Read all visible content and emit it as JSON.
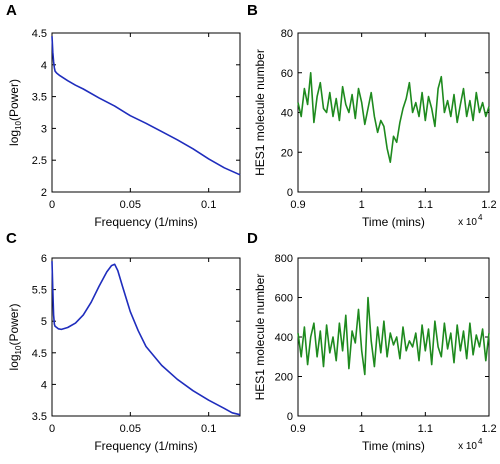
{
  "chart_data": [
    {
      "panel": "A",
      "type": "line",
      "xlabel": "Frequency (1/mins)",
      "ylabel": "log10(Power)",
      "xlim": [
        0,
        0.12
      ],
      "ylim": [
        2,
        4.5
      ],
      "xticks": [
        0,
        0.05,
        0.1
      ],
      "xtick_labels": [
        "0",
        "0.05",
        "0.1"
      ],
      "yticks": [
        2,
        2.5,
        3,
        3.5,
        4,
        4.5
      ],
      "ytick_labels": [
        "2",
        "2.5",
        "3",
        "3.5",
        "4",
        "4.5"
      ],
      "series": [
        {
          "color": "#1f2dbd",
          "x": [
            0,
            0.0005,
            0.001,
            0.0015,
            0.002,
            0.003,
            0.005,
            0.01,
            0.015,
            0.02,
            0.03,
            0.04,
            0.05,
            0.06,
            0.07,
            0.08,
            0.09,
            0.1,
            0.11,
            0.12
          ],
          "y": [
            4.45,
            4.2,
            4.05,
            3.95,
            3.9,
            3.87,
            3.83,
            3.75,
            3.68,
            3.62,
            3.48,
            3.35,
            3.2,
            3.08,
            2.95,
            2.82,
            2.68,
            2.52,
            2.38,
            2.27
          ]
        }
      ]
    },
    {
      "panel": "B",
      "type": "line",
      "xlabel": "Time (mins)",
      "ylabel": "HES1 molecule number",
      "x_multiplier": "x 10",
      "x_multiplier_exp": "4",
      "xlim": [
        0.9,
        1.2
      ],
      "ylim": [
        0,
        80
      ],
      "xticks": [
        0.9,
        1.0,
        1.1,
        1.2
      ],
      "xtick_labels": [
        "0.9",
        "1",
        "1.1",
        "1.2"
      ],
      "yticks": [
        0,
        20,
        40,
        60,
        80
      ],
      "ytick_labels": [
        "0",
        "20",
        "40",
        "60",
        "80"
      ],
      "series": [
        {
          "color": "#1e8a1e",
          "x": [
            0.9,
            0.905,
            0.91,
            0.915,
            0.92,
            0.925,
            0.93,
            0.935,
            0.94,
            0.945,
            0.95,
            0.955,
            0.96,
            0.965,
            0.97,
            0.975,
            0.98,
            0.985,
            0.99,
            0.995,
            1.0,
            1.005,
            1.01,
            1.015,
            1.02,
            1.025,
            1.03,
            1.035,
            1.04,
            1.045,
            1.05,
            1.055,
            1.06,
            1.065,
            1.07,
            1.075,
            1.08,
            1.085,
            1.09,
            1.095,
            1.1,
            1.105,
            1.11,
            1.115,
            1.12,
            1.125,
            1.13,
            1.135,
            1.14,
            1.145,
            1.15,
            1.155,
            1.16,
            1.165,
            1.17,
            1.175,
            1.18,
            1.185,
            1.19,
            1.195,
            1.2
          ],
          "y": [
            45,
            38,
            52,
            44,
            60,
            35,
            48,
            55,
            42,
            40,
            50,
            38,
            47,
            36,
            53,
            44,
            40,
            49,
            37,
            52,
            45,
            34,
            42,
            50,
            38,
            30,
            36,
            33,
            22,
            15,
            28,
            25,
            35,
            42,
            47,
            55,
            40,
            45,
            38,
            50,
            36,
            48,
            42,
            33,
            52,
            58,
            40,
            46,
            38,
            49,
            35,
            44,
            52,
            38,
            46,
            36,
            50,
            40,
            45,
            38,
            43
          ]
        }
      ]
    },
    {
      "panel": "C",
      "type": "line",
      "xlabel": "Frequency (1/mins)",
      "ylabel": "log10(Power)",
      "xlim": [
        0,
        0.12
      ],
      "ylim": [
        3.5,
        6
      ],
      "xticks": [
        0,
        0.05,
        0.1
      ],
      "xtick_labels": [
        "0",
        "0.05",
        "0.1"
      ],
      "yticks": [
        3.5,
        4,
        4.5,
        5,
        5.5,
        6
      ],
      "ytick_labels": [
        "3.5",
        "4",
        "4.5",
        "5",
        "5.5",
        "6"
      ],
      "series": [
        {
          "color": "#1f2dbd",
          "x": [
            0,
            0.0005,
            0.001,
            0.0015,
            0.002,
            0.004,
            0.006,
            0.01,
            0.015,
            0.02,
            0.025,
            0.03,
            0.035,
            0.038,
            0.04,
            0.042,
            0.045,
            0.05,
            0.055,
            0.06,
            0.07,
            0.08,
            0.09,
            0.1,
            0.11,
            0.115,
            0.12
          ],
          "y": [
            5.95,
            5.5,
            5.1,
            4.95,
            4.92,
            4.88,
            4.87,
            4.9,
            4.97,
            5.1,
            5.3,
            5.55,
            5.78,
            5.88,
            5.9,
            5.8,
            5.55,
            5.15,
            4.85,
            4.6,
            4.3,
            4.08,
            3.9,
            3.75,
            3.62,
            3.55,
            3.52
          ]
        }
      ]
    },
    {
      "panel": "D",
      "type": "line",
      "xlabel": "Time (mins)",
      "ylabel": "HES1 molecule number",
      "x_multiplier": "x 10",
      "x_multiplier_exp": "4",
      "xlim": [
        0.9,
        1.2
      ],
      "ylim": [
        0,
        800
      ],
      "xticks": [
        0.9,
        1.0,
        1.1,
        1.2
      ],
      "xtick_labels": [
        "0.9",
        "1",
        "1.1",
        "1.2"
      ],
      "yticks": [
        0,
        200,
        400,
        600,
        800
      ],
      "ytick_labels": [
        "0",
        "200",
        "400",
        "600",
        "800"
      ],
      "series": [
        {
          "color": "#1e8a1e",
          "x": [
            0.9,
            0.905,
            0.91,
            0.915,
            0.92,
            0.925,
            0.93,
            0.935,
            0.94,
            0.945,
            0.95,
            0.955,
            0.96,
            0.965,
            0.97,
            0.975,
            0.98,
            0.985,
            0.99,
            0.995,
            1.0,
            1.005,
            1.01,
            1.015,
            1.02,
            1.025,
            1.03,
            1.035,
            1.04,
            1.045,
            1.05,
            1.055,
            1.06,
            1.065,
            1.07,
            1.075,
            1.08,
            1.085,
            1.09,
            1.095,
            1.1,
            1.105,
            1.11,
            1.115,
            1.12,
            1.125,
            1.13,
            1.135,
            1.14,
            1.145,
            1.15,
            1.155,
            1.16,
            1.165,
            1.17,
            1.175,
            1.18,
            1.185,
            1.19,
            1.195,
            1.2
          ],
          "y": [
            420,
            300,
            450,
            260,
            400,
            470,
            300,
            430,
            250,
            460,
            320,
            400,
            280,
            470,
            330,
            510,
            240,
            430,
            370,
            540,
            330,
            210,
            600,
            380,
            250,
            450,
            320,
            480,
            300,
            420,
            360,
            400,
            290,
            450,
            330,
            380,
            350,
            420,
            280,
            460,
            330,
            440,
            260,
            480,
            350,
            300,
            470,
            340,
            420,
            270,
            460,
            330,
            430,
            290,
            470,
            310,
            410,
            350,
            440,
            280,
            420
          ]
        }
      ]
    }
  ],
  "panels": {
    "a": {
      "letter": "A"
    },
    "b": {
      "letter": "B"
    },
    "c": {
      "letter": "C"
    },
    "d": {
      "letter": "D"
    }
  }
}
